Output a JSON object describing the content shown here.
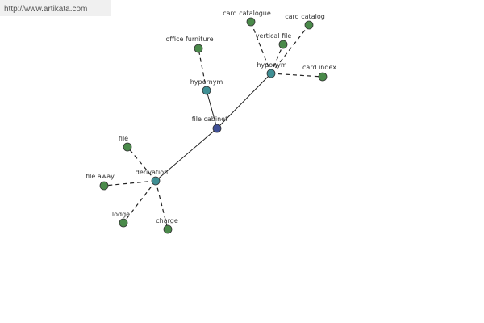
{
  "watermark": "http://www.artikata.com",
  "nodes": [
    {
      "label": "file cabinet"
    },
    {
      "label": "hypernym"
    },
    {
      "label": "office furniture"
    },
    {
      "label": "hyponym"
    },
    {
      "label": "card catalogue"
    },
    {
      "label": "card catalog"
    },
    {
      "label": "vertical file"
    },
    {
      "label": "card index"
    },
    {
      "label": "derivation"
    },
    {
      "label": "file"
    },
    {
      "label": "file away"
    },
    {
      "label": "lodge"
    },
    {
      "label": "charge"
    }
  ]
}
